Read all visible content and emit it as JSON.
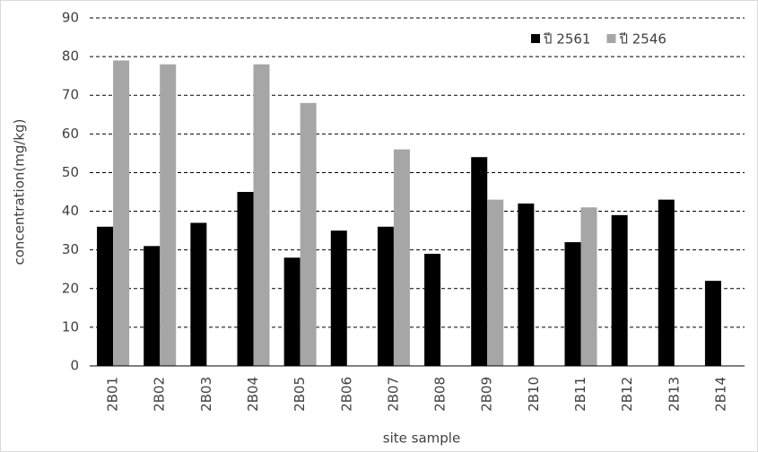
{
  "chart_data": {
    "type": "bar",
    "x_label": "site sample",
    "y_label": "concentration(mg/kg)",
    "categories": [
      "2B01",
      "2B02",
      "2B03",
      "2B04",
      "2B05",
      "2B06",
      "2B07",
      "2B08",
      "2B09",
      "2B10",
      "2B11",
      "2B12",
      "2B13",
      "2B14"
    ],
    "series": [
      {
        "name": "ปี 2561",
        "color": "#000000",
        "values": [
          36,
          31,
          37,
          45,
          28,
          35,
          36,
          29,
          54,
          42,
          32,
          39,
          43,
          22
        ]
      },
      {
        "name": "ปี 2546",
        "color": "#a6a6a6",
        "values": [
          79,
          78,
          null,
          78,
          68,
          null,
          56,
          null,
          43,
          null,
          41,
          null,
          null,
          null
        ]
      }
    ],
    "ylim": [
      0,
      90
    ],
    "yticks": [
      0,
      10,
      20,
      30,
      40,
      50,
      60,
      70,
      80,
      90
    ],
    "grid": true,
    "legend": "top-right"
  }
}
